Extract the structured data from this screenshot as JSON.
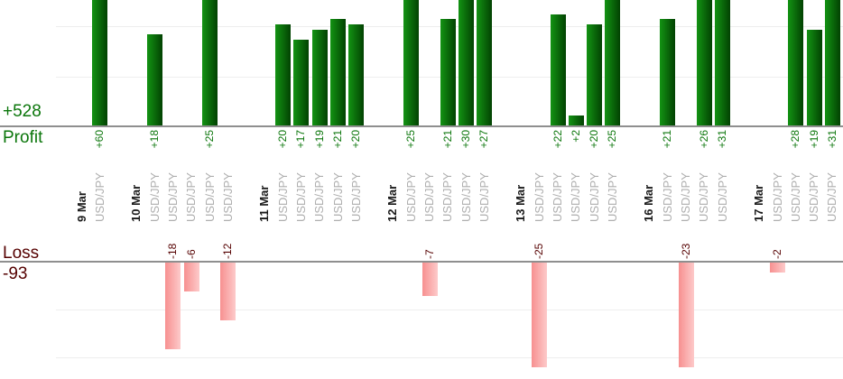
{
  "chart_data": {
    "type": "bar",
    "instrument": "USD/JPY",
    "profit": {
      "axis_label": "Profit",
      "total_label": "+528",
      "total": 528
    },
    "loss": {
      "axis_label": "Loss",
      "total_label": "-93",
      "total": -93
    },
    "days": [
      {
        "date": "9 Mar",
        "trades": [
          60
        ]
      },
      {
        "date": "10 Mar",
        "trades": [
          18,
          -18,
          -6,
          25,
          -12
        ]
      },
      {
        "date": "11 Mar",
        "trades": [
          20,
          17,
          19,
          21,
          20
        ]
      },
      {
        "date": "12 Mar",
        "trades": [
          25,
          -7,
          21,
          30,
          27
        ]
      },
      {
        "date": "13 Mar",
        "trades": [
          -25,
          22,
          2,
          20,
          25
        ]
      },
      {
        "date": "16 Mar",
        "trades": [
          21,
          -23,
          26,
          31
        ]
      },
      {
        "date": "17 Mar",
        "trades": [
          -2,
          28,
          19,
          31
        ]
      }
    ],
    "layout_hints": {
      "value_labels": "rotated 90deg, reading bottom to top",
      "x_axis_labels": "one bold date per day followed by one USD/JPY label per trade, rotated 90deg",
      "gridline_values": [
        10,
        20
      ],
      "profit_bars_clipped_above": 25,
      "loss_bars_clipped_below": -22,
      "grid": true,
      "legend": false
    },
    "colors": {
      "profit_bar_gradient": [
        "#139313",
        "#024202"
      ],
      "loss_bar_gradient": [
        "#f79090",
        "#fdcaca"
      ],
      "profit_text": "#0b760b",
      "loss_text": "#550000",
      "date_text": "#1a1a1a",
      "instrument_text": "#aeaeae",
      "axis_line": "#8f8f8f",
      "grid_line": "#eeeeee"
    }
  }
}
